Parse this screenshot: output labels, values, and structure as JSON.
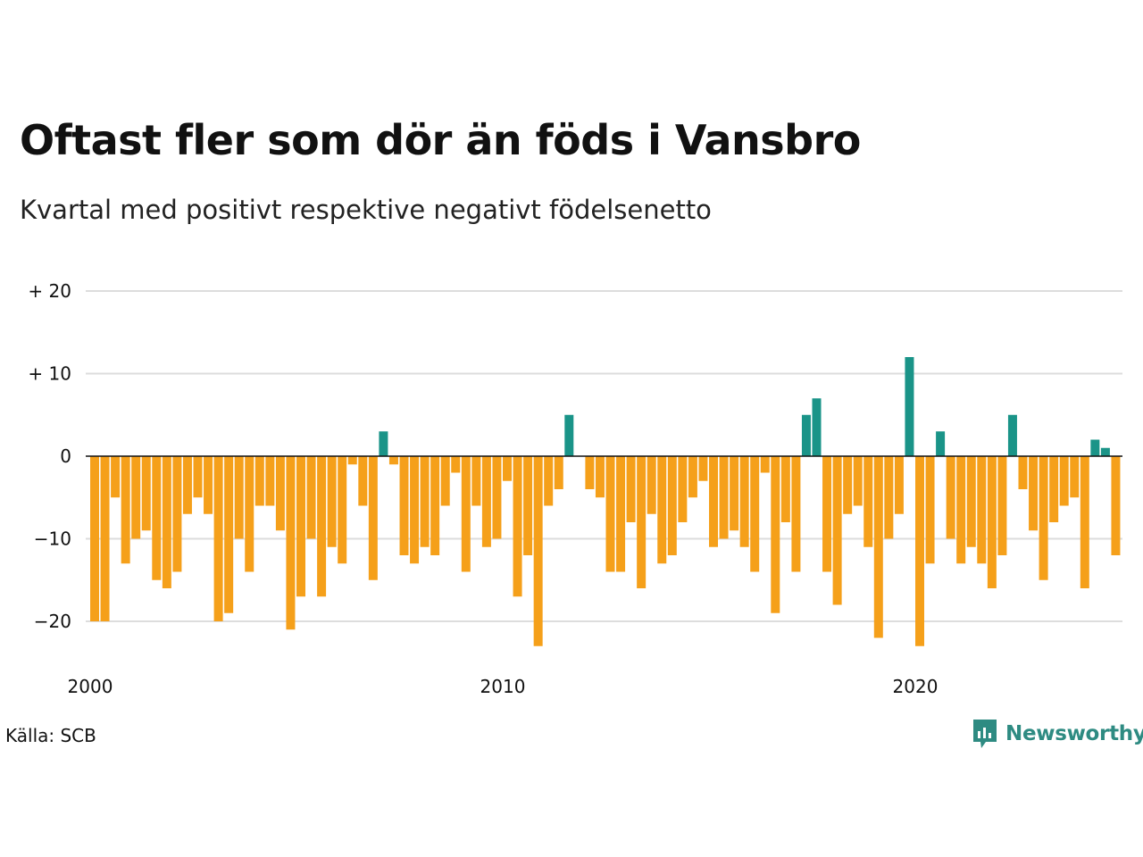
{
  "title": "Oftast fler som dör än föds i Vansbro",
  "subtitle": "Kvartal med positivt respektive negativt födelsenetto",
  "source": "Källa: SCB",
  "brand": "Newsworthy",
  "colors": {
    "positive": "#1a9488",
    "negative": "#f5a01a",
    "grid": "#dddddd",
    "zero": "#111111",
    "brand": "#2e8b82"
  },
  "chart_data": {
    "type": "bar",
    "title": "Oftast fler som dör än föds i Vansbro",
    "subtitle": "Kvartal med positivt respektive negativt födelsenetto",
    "xlabel": "",
    "ylabel": "",
    "ylim": [
      -25,
      20
    ],
    "y_ticks": [
      {
        "value": 20,
        "label": "+ 20"
      },
      {
        "value": 10,
        "label": "+ 10"
      },
      {
        "value": 0,
        "label": "0"
      },
      {
        "value": -10,
        "label": "−10"
      },
      {
        "value": -20,
        "label": "−20"
      }
    ],
    "x_ticks": [
      {
        "year": 2000,
        "label": "2000"
      },
      {
        "year": 2010,
        "label": "2010"
      },
      {
        "year": 2020,
        "label": "2020"
      }
    ],
    "start_period": "2000K1",
    "grid": true,
    "legend": "none",
    "values": [
      -20,
      -20,
      -5,
      -13,
      -10,
      -9,
      -15,
      -16,
      -14,
      -7,
      -5,
      -7,
      -20,
      -19,
      -10,
      -14,
      -6,
      -6,
      -9,
      -21,
      -17,
      -10,
      -17,
      -11,
      -13,
      -1,
      -6,
      -15,
      3,
      -1,
      -12,
      -13,
      -11,
      -12,
      -6,
      -2,
      -14,
      -6,
      -11,
      -10,
      -3,
      -17,
      -12,
      -23,
      -6,
      -4,
      5,
      0,
      -4,
      -5,
      -14,
      -14,
      -8,
      -16,
      -7,
      -13,
      -12,
      -8,
      -5,
      -3,
      -11,
      -10,
      -9,
      -11,
      -14,
      -2,
      -19,
      -8,
      -14,
      5,
      7,
      -14,
      -18,
      -7,
      -6,
      -11,
      -22,
      -10,
      -7,
      12,
      -23,
      -13,
      3,
      -10,
      -13,
      -11,
      -13,
      -16,
      -12,
      5,
      -4,
      -9,
      -15,
      -8,
      -6,
      -5,
      -16,
      2,
      1,
      -12
    ]
  }
}
